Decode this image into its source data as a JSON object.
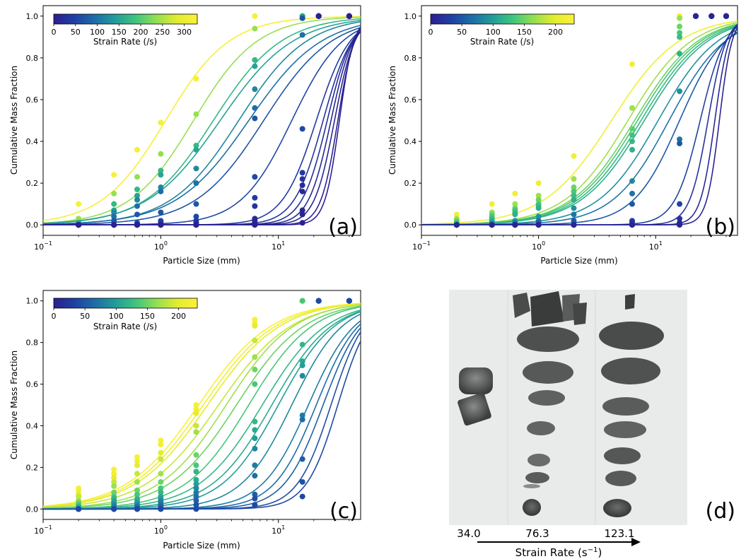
{
  "chart_data": [
    {
      "type": "line",
      "panel": "(a)",
      "xlabel": "Particle Size (mm)",
      "ylabel": "Cumulative Mass Fraction",
      "xscale": "log",
      "xlim": [
        0.1,
        50
      ],
      "ylim": [
        -0.05,
        1.05
      ],
      "xticks": [
        {
          "value": 0.1,
          "base": "10",
          "exp": "−1"
        },
        {
          "value": 1,
          "base": "10",
          "exp": "0"
        },
        {
          "value": 10,
          "base": "10",
          "exp": "1"
        }
      ],
      "yticks": [
        "0.0",
        "0.2",
        "0.4",
        "0.6",
        "0.8",
        "1.0"
      ],
      "colorbar": {
        "label": "Strain Rate (/s)",
        "ticks": [
          "0",
          "50",
          "100",
          "150",
          "200",
          "250",
          "300"
        ],
        "min": 0,
        "max": 330,
        "colormap": "viridis-like (navy → green → yellow)"
      },
      "sieve_sizes": [
        0.2,
        0.4,
        0.63,
        1.0,
        2.0,
        6.3,
        16,
        22,
        40
      ],
      "series": [
        {
          "strain_rate": 320,
          "x50": 1.1,
          "m": 1.6,
          "points": [
            0.1,
            0.24,
            0.36,
            0.49,
            0.7,
            1.0,
            1.0,
            1.0,
            1.0
          ]
        },
        {
          "strain_rate": 240,
          "x50": 1.9,
          "m": 1.6,
          "points": [
            0.03,
            0.15,
            0.23,
            0.34,
            0.53,
            0.94,
            1.0,
            1.0,
            1.0
          ]
        },
        {
          "strain_rate": 175,
          "x50": 2.8,
          "m": 1.5,
          "points": [
            0.01,
            0.1,
            0.17,
            0.26,
            0.38,
            0.79,
            1.0,
            1.0,
            1.0
          ]
        },
        {
          "strain_rate": 150,
          "x50": 3.2,
          "m": 1.4,
          "points": [
            0.01,
            0.07,
            0.14,
            0.24,
            0.36,
            0.76,
            1.0,
            1.0,
            1.0
          ]
        },
        {
          "strain_rate": 120,
          "x50": 4.6,
          "m": 1.5,
          "points": [
            0.0,
            0.06,
            0.12,
            0.18,
            0.27,
            0.65,
            0.99,
            1.0,
            1.0
          ]
        },
        {
          "strain_rate": 95,
          "x50": 5.6,
          "m": 1.4,
          "points": [
            0.0,
            0.04,
            0.09,
            0.16,
            0.2,
            0.56,
            0.91,
            1.0,
            1.0
          ]
        },
        {
          "strain_rate": 70,
          "x50": 7.5,
          "m": 1.5,
          "points": [
            0.0,
            0.02,
            0.05,
            0.06,
            0.1,
            0.51,
            0.99,
            1.0,
            1.0
          ]
        },
        {
          "strain_rate": 55,
          "x50": 13.0,
          "m": 2.0,
          "points": [
            0.0,
            0.0,
            0.01,
            0.02,
            0.04,
            0.23,
            0.46,
            1.0,
            1.0
          ]
        },
        {
          "strain_rate": 40,
          "x50": 21.0,
          "m": 3.0,
          "points": [
            0.0,
            0.0,
            0.0,
            0.01,
            0.02,
            0.13,
            0.25,
            1.0,
            1.0
          ]
        },
        {
          "strain_rate": 30,
          "x50": 24.0,
          "m": 3.5,
          "points": [
            0.0,
            0.0,
            0.0,
            0.0,
            0.01,
            0.09,
            0.22,
            1.0,
            1.0
          ]
        },
        {
          "strain_rate": 20,
          "x50": 26.0,
          "m": 4.0,
          "points": [
            0.0,
            0.0,
            0.0,
            0.0,
            0.0,
            0.03,
            0.19,
            1.0,
            1.0
          ]
        },
        {
          "strain_rate": 15,
          "x50": 28.0,
          "m": 4.5,
          "points": [
            0.0,
            0.0,
            0.0,
            0.0,
            0.0,
            0.02,
            0.16,
            1.0,
            1.0
          ]
        },
        {
          "strain_rate": 10,
          "x50": 30.0,
          "m": 5.0,
          "points": [
            0.0,
            0.0,
            0.0,
            0.0,
            0.0,
            0.01,
            0.07,
            1.0,
            1.0
          ]
        },
        {
          "strain_rate": 5,
          "x50": 32.0,
          "m": 6.0,
          "points": [
            0.0,
            0.0,
            0.0,
            0.0,
            0.0,
            0.0,
            0.05,
            1.0,
            1.0
          ]
        },
        {
          "strain_rate": 2,
          "x50": 33.0,
          "m": 7.0,
          "points": [
            0.0,
            0.0,
            0.0,
            0.0,
            0.0,
            0.0,
            0.01,
            1.0,
            1.0
          ]
        }
      ]
    },
    {
      "type": "line",
      "panel": "(b)",
      "xlabel": "Particle Size (mm)",
      "ylabel": "Cumulative Mass Fraction",
      "xscale": "log",
      "xlim": [
        0.1,
        50
      ],
      "ylim": [
        -0.05,
        1.05
      ],
      "xticks": [
        {
          "value": 0.1,
          "base": "10",
          "exp": "−1"
        },
        {
          "value": 1,
          "base": "10",
          "exp": "0"
        },
        {
          "value": 10,
          "base": "10",
          "exp": "1"
        }
      ],
      "yticks": [
        "0.0",
        "0.2",
        "0.4",
        "0.6",
        "0.8",
        "1.0"
      ],
      "colorbar": {
        "label": "Strain Rate (/s)",
        "ticks": [
          "0",
          "50",
          "100",
          "150",
          "200"
        ],
        "min": 0,
        "max": 230,
        "colormap": "viridis-like (navy → green → yellow)"
      },
      "sieve_sizes": [
        0.2,
        0.4,
        0.63,
        1.0,
        2.0,
        6.3,
        16,
        22,
        30,
        40
      ],
      "series": [
        {
          "strain_rate": 215,
          "x50": 4.2,
          "m": 1.5,
          "points": [
            0.05,
            0.1,
            0.15,
            0.2,
            0.33,
            0.77,
            1.0,
            1.0,
            1.0,
            1.0
          ]
        },
        {
          "strain_rate": 170,
          "x50": 5.8,
          "m": 1.6,
          "points": [
            0.03,
            0.06,
            0.1,
            0.14,
            0.22,
            0.56,
            0.99,
            1.0,
            1.0,
            1.0
          ]
        },
        {
          "strain_rate": 150,
          "x50": 6.6,
          "m": 1.6,
          "points": [
            0.02,
            0.05,
            0.08,
            0.12,
            0.18,
            0.46,
            0.95,
            1.0,
            1.0,
            1.0
          ]
        },
        {
          "strain_rate": 135,
          "x50": 7.0,
          "m": 1.6,
          "points": [
            0.01,
            0.04,
            0.07,
            0.1,
            0.16,
            0.43,
            0.92,
            1.0,
            1.0,
            1.0
          ]
        },
        {
          "strain_rate": 125,
          "x50": 7.5,
          "m": 1.6,
          "points": [
            0.01,
            0.03,
            0.06,
            0.09,
            0.14,
            0.4,
            0.9,
            1.0,
            1.0,
            1.0
          ]
        },
        {
          "strain_rate": 115,
          "x50": 8.0,
          "m": 1.6,
          "points": [
            0.0,
            0.02,
            0.05,
            0.08,
            0.12,
            0.36,
            0.82,
            1.0,
            1.0,
            1.0
          ]
        },
        {
          "strain_rate": 90,
          "x50": 10.5,
          "m": 1.7,
          "points": [
            0.0,
            0.01,
            0.02,
            0.04,
            0.08,
            0.21,
            0.64,
            1.0,
            1.0,
            1.0
          ]
        },
        {
          "strain_rate": 70,
          "x50": 13.0,
          "m": 1.8,
          "points": [
            0.0,
            0.0,
            0.01,
            0.02,
            0.05,
            0.15,
            0.41,
            1.0,
            1.0,
            1.0
          ]
        },
        {
          "strain_rate": 50,
          "x50": 16.0,
          "m": 2.2,
          "points": [
            0.0,
            0.0,
            0.0,
            0.01,
            0.02,
            0.1,
            0.39,
            1.0,
            1.0,
            1.0
          ]
        },
        {
          "strain_rate": 35,
          "x50": 24.0,
          "m": 4.0,
          "points": [
            0.0,
            0.0,
            0.0,
            0.0,
            0.0,
            0.02,
            0.1,
            1.0,
            1.0,
            1.0
          ]
        },
        {
          "strain_rate": 20,
          "x50": 28.0,
          "m": 5.5,
          "points": [
            0.0,
            0.0,
            0.0,
            0.0,
            0.0,
            0.01,
            0.03,
            1.0,
            1.0,
            1.0
          ]
        },
        {
          "strain_rate": 10,
          "x50": 32.0,
          "m": 7.0,
          "points": [
            0.0,
            0.0,
            0.0,
            0.0,
            0.0,
            0.0,
            0.01,
            1.0,
            1.0,
            1.0
          ]
        },
        {
          "strain_rate": 5,
          "x50": 35.0,
          "m": 8.0,
          "points": [
            0.0,
            0.0,
            0.0,
            0.0,
            0.0,
            0.0,
            0.0,
            1.0,
            1.0,
            1.0
          ]
        }
      ]
    },
    {
      "type": "line",
      "panel": "(c)",
      "xlabel": "Particle Size (mm)",
      "ylabel": "Cumulative Mass Fraction",
      "xscale": "log",
      "xlim": [
        0.1,
        50
      ],
      "ylim": [
        -0.05,
        1.05
      ],
      "xticks": [
        {
          "value": 0.1,
          "base": "10",
          "exp": "−1"
        },
        {
          "value": 1,
          "base": "10",
          "exp": "0"
        },
        {
          "value": 10,
          "base": "10",
          "exp": "1"
        }
      ],
      "yticks": [
        "0.0",
        "0.2",
        "0.4",
        "0.6",
        "0.8",
        "1.0"
      ],
      "colorbar": {
        "label": "Strain Rate (/s)",
        "ticks": [
          "0",
          "50",
          "100",
          "150",
          "200"
        ],
        "min": 0,
        "max": 230,
        "colormap": "viridis-like (navy → green → yellow)"
      },
      "sieve_sizes": [
        0.2,
        0.4,
        0.63,
        1.0,
        2.0,
        6.3,
        16,
        22,
        40
      ],
      "series": [
        {
          "strain_rate": 225,
          "x50": 2.1,
          "m": 1.4,
          "points": [
            0.1,
            0.19,
            0.25,
            0.33,
            0.5,
            0.91,
            1.0,
            1.0,
            1.0
          ]
        },
        {
          "strain_rate": 215,
          "x50": 2.3,
          "m": 1.4,
          "points": [
            0.09,
            0.17,
            0.23,
            0.31,
            0.48,
            0.89,
            1.0,
            1.0,
            1.0
          ]
        },
        {
          "strain_rate": 200,
          "x50": 2.5,
          "m": 1.4,
          "points": [
            0.07,
            0.15,
            0.21,
            0.27,
            0.46,
            0.88,
            1.0,
            1.0,
            1.0
          ]
        },
        {
          "strain_rate": 185,
          "x50": 3.1,
          "m": 1.4,
          "points": [
            0.06,
            0.13,
            0.17,
            0.24,
            0.4,
            0.81,
            1.0,
            1.0,
            1.0
          ]
        },
        {
          "strain_rate": 170,
          "x50": 3.6,
          "m": 1.5,
          "points": [
            0.04,
            0.11,
            0.13,
            0.17,
            0.37,
            0.73,
            1.0,
            1.0,
            1.0
          ]
        },
        {
          "strain_rate": 150,
          "x50": 4.4,
          "m": 1.5,
          "points": [
            0.03,
            0.08,
            0.09,
            0.13,
            0.26,
            0.67,
            1.0,
            1.0,
            1.0
          ]
        },
        {
          "strain_rate": 135,
          "x50": 5.6,
          "m": 1.6,
          "points": [
            0.02,
            0.06,
            0.07,
            0.1,
            0.21,
            0.6,
            1.0,
            1.0,
            1.0
          ]
        },
        {
          "strain_rate": 120,
          "x50": 7.3,
          "m": 1.6,
          "points": [
            0.01,
            0.05,
            0.05,
            0.08,
            0.18,
            0.42,
            0.79,
            1.0,
            1.0
          ]
        },
        {
          "strain_rate": 110,
          "x50": 8.8,
          "m": 1.7,
          "points": [
            0.01,
            0.04,
            0.04,
            0.06,
            0.14,
            0.38,
            0.71,
            1.0,
            1.0
          ]
        },
        {
          "strain_rate": 100,
          "x50": 10.0,
          "m": 1.8,
          "points": [
            0.0,
            0.03,
            0.03,
            0.05,
            0.12,
            0.34,
            0.69,
            1.0,
            1.0
          ]
        },
        {
          "strain_rate": 85,
          "x50": 13.0,
          "m": 2.0,
          "points": [
            0.0,
            0.02,
            0.02,
            0.04,
            0.1,
            0.29,
            0.64,
            1.0,
            1.0
          ]
        },
        {
          "strain_rate": 75,
          "x50": 18.0,
          "m": 2.2,
          "points": [
            0.0,
            0.01,
            0.01,
            0.03,
            0.08,
            0.21,
            0.45,
            1.0,
            1.0
          ]
        },
        {
          "strain_rate": 65,
          "x50": 21.0,
          "m": 2.4,
          "points": [
            0.0,
            0.0,
            0.01,
            0.02,
            0.06,
            0.16,
            0.43,
            1.0,
            1.0
          ]
        },
        {
          "strain_rate": 55,
          "x50": 24.0,
          "m": 2.6,
          "points": [
            0.0,
            0.0,
            0.0,
            0.01,
            0.04,
            0.07,
            0.24,
            1.0,
            1.0
          ]
        },
        {
          "strain_rate": 45,
          "x50": 28.0,
          "m": 3.0,
          "points": [
            0.0,
            0.0,
            0.0,
            0.0,
            0.02,
            0.05,
            0.13,
            1.0,
            1.0
          ]
        },
        {
          "strain_rate": 40,
          "x50": 32.0,
          "m": 3.2,
          "points": [
            0.0,
            0.0,
            0.0,
            0.0,
            0.0,
            0.02,
            0.06,
            1.0,
            1.0
          ]
        }
      ]
    }
  ],
  "photo_panel": {
    "letter": "(d)",
    "strain_values": [
      "34.0",
      "76.3",
      "123.1"
    ],
    "axis_label": "Strain Rate (s",
    "axis_label_sup": "−1",
    "axis_label_close": ")"
  },
  "colors": {
    "colormap_stops": [
      "#2c1f8f",
      "#1f3fa3",
      "#1e6ea6",
      "#239c9a",
      "#3ec47e",
      "#8fde54",
      "#e4ec2d",
      "#fbf13a"
    ],
    "background": "#ffffff",
    "photo_bg": "#e9ebea"
  }
}
